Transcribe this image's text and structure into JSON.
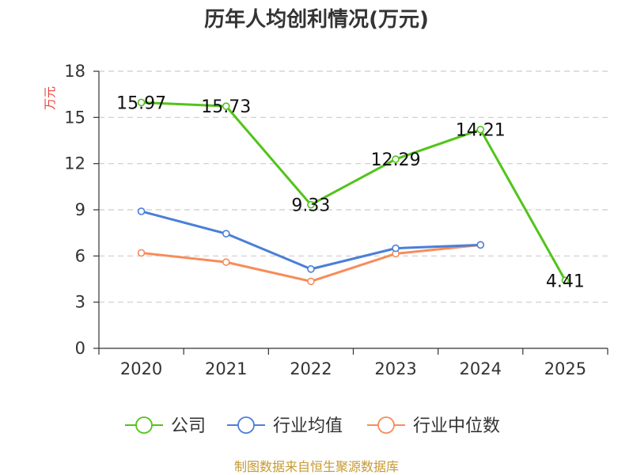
{
  "chart_data": {
    "type": "line",
    "title": "历年人均创利情况(万元)",
    "ylabel": "万元",
    "categories": [
      "2020",
      "2021",
      "2022",
      "2023",
      "2024",
      "2025"
    ],
    "ylim": [
      0,
      18
    ],
    "yticks": [
      0,
      3,
      6,
      9,
      12,
      15,
      18
    ],
    "grid": true,
    "legend_position": "bottom",
    "series": [
      {
        "name": "公司",
        "color": "#52c41a",
        "values": [
          15.97,
          15.73,
          9.33,
          12.29,
          14.21,
          4.41
        ],
        "labels": [
          "15.97",
          "15.73",
          "9.33",
          "12.29",
          "14.21",
          "4.41"
        ]
      },
      {
        "name": "行业均值",
        "color": "#4a7fd8",
        "values": [
          8.9,
          7.45,
          5.15,
          6.5,
          6.72,
          null
        ]
      },
      {
        "name": "行业中位数",
        "color": "#f78c5a",
        "values": [
          6.2,
          5.6,
          4.35,
          6.15,
          6.72,
          null
        ]
      }
    ]
  },
  "colors": {
    "ylabel": "#e8433a",
    "source": "#c59a32",
    "axis": "#333333",
    "grid": "#cccccc"
  },
  "source_text": "制图数据来自恒生聚源数据库"
}
